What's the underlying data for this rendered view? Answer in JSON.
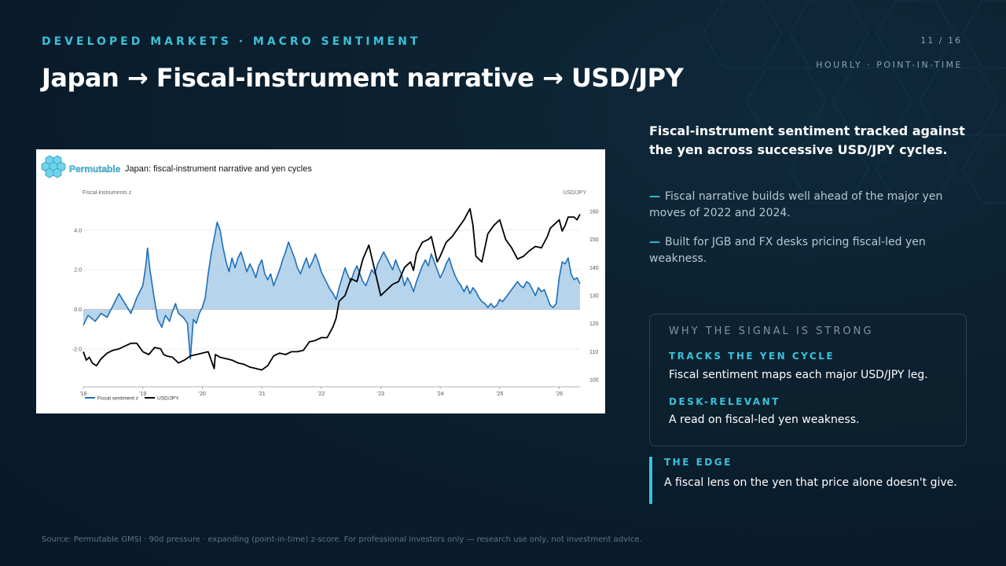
{
  "header": {
    "kicker": "DEVELOPED MARKETS  ·  MACRO SENTIMENT",
    "title": "Japan  →  Fiscal-instrument narrative → USD/JPY",
    "page": "11 / 16",
    "badge": "HOURLY · POINT-IN-TIME"
  },
  "summary": {
    "lead": "Fiscal-instrument sentiment tracked against the yen across successive USD/JPY cycles.",
    "bullets": [
      "Fiscal narrative builds well ahead of the major yen moves of 2022 and 2024.",
      "Built for JGB and FX desks pricing fiscal-led yen weakness."
    ],
    "dash": "—"
  },
  "panel": {
    "heading": "WHY THE SIGNAL IS STRONG",
    "items": [
      {
        "label": "TRACKS THE YEN CYCLE",
        "text": "Fiscal sentiment maps each major USD/JPY leg."
      },
      {
        "label": "DESK-RELEVANT",
        "text": "A read on fiscal-led yen weakness."
      }
    ]
  },
  "edge": {
    "label": "THE EDGE",
    "text": "A fiscal lens on the yen that price alone doesn't give."
  },
  "footer": "Source: Permutable GMSI · 90d pressure · expanding (point-in-time) z-score. For professional investors only — research use only, not investment advice.",
  "colors": {
    "accent": "#39c2d8",
    "background": "#0b1f2e",
    "sentiment_line": "#1f6fb5",
    "sentiment_fill": "#a9cce9",
    "usdjpy_line": "#000000"
  },
  "chart_data": {
    "type": "line",
    "brand": "Permutable",
    "title": "Japan: fiscal-instrument narrative and yen cycles",
    "ylabel_left": "Fiscal-instruments z",
    "ylabel_right": "USD/JPY",
    "x_ticks": [
      "'18",
      "'19",
      "'20",
      "'21",
      "'22",
      "'23",
      "'24",
      "'25",
      "'26"
    ],
    "x_range": [
      2018.0,
      2026.35
    ],
    "left_axis": {
      "range": [
        -3.9,
        5.3
      ],
      "ticks": [
        -2.0,
        0.0,
        2.0,
        4.0
      ],
      "tick_labels": [
        "-2.0",
        "0.0",
        "2.0",
        "4.0"
      ]
    },
    "right_axis": {
      "range": [
        97.5,
        162.5
      ],
      "ticks": [
        100,
        110,
        120,
        130,
        140,
        150,
        160
      ],
      "tick_labels": [
        "100",
        "110",
        "120",
        "130",
        "140",
        "150",
        "160"
      ]
    },
    "grid": true,
    "legend_position": "bottom-left",
    "series": [
      {
        "name": "Fiscal sentiment z",
        "axis": "left",
        "area_fill": true,
        "points": [
          [
            2018.0,
            -0.8
          ],
          [
            2018.08,
            -0.3
          ],
          [
            2018.2,
            -0.6
          ],
          [
            2018.3,
            -0.2
          ],
          [
            2018.4,
            -0.4
          ],
          [
            2018.5,
            0.2
          ],
          [
            2018.6,
            0.8
          ],
          [
            2018.7,
            0.3
          ],
          [
            2018.8,
            -0.2
          ],
          [
            2018.9,
            0.6
          ],
          [
            2019.0,
            1.2
          ],
          [
            2019.05,
            2.2
          ],
          [
            2019.08,
            3.1
          ],
          [
            2019.12,
            2.0
          ],
          [
            2019.18,
            0.8
          ],
          [
            2019.25,
            -0.5
          ],
          [
            2019.32,
            -0.9
          ],
          [
            2019.38,
            -0.3
          ],
          [
            2019.45,
            -0.6
          ],
          [
            2019.5,
            -0.1
          ],
          [
            2019.55,
            0.3
          ],
          [
            2019.6,
            -0.2
          ],
          [
            2019.68,
            -0.4
          ],
          [
            2019.75,
            -0.7
          ],
          [
            2019.8,
            -2.5
          ],
          [
            2019.85,
            -0.5
          ],
          [
            2019.9,
            -0.7
          ],
          [
            2019.95,
            -0.2
          ],
          [
            2020.0,
            0.1
          ],
          [
            2020.05,
            0.6
          ],
          [
            2020.1,
            1.8
          ],
          [
            2020.15,
            2.8
          ],
          [
            2020.2,
            3.6
          ],
          [
            2020.25,
            4.4
          ],
          [
            2020.3,
            4.0
          ],
          [
            2020.35,
            3.1
          ],
          [
            2020.4,
            2.4
          ],
          [
            2020.45,
            1.9
          ],
          [
            2020.5,
            2.6
          ],
          [
            2020.55,
            2.1
          ],
          [
            2020.6,
            2.6
          ],
          [
            2020.65,
            2.9
          ],
          [
            2020.7,
            2.4
          ],
          [
            2020.75,
            1.9
          ],
          [
            2020.8,
            2.3
          ],
          [
            2020.85,
            2.0
          ],
          [
            2020.9,
            1.6
          ],
          [
            2020.95,
            2.2
          ],
          [
            2021.0,
            2.5
          ],
          [
            2021.05,
            1.8
          ],
          [
            2021.1,
            1.5
          ],
          [
            2021.15,
            1.8
          ],
          [
            2021.2,
            1.2
          ],
          [
            2021.25,
            1.6
          ],
          [
            2021.3,
            2.0
          ],
          [
            2021.35,
            2.5
          ],
          [
            2021.4,
            2.9
          ],
          [
            2021.45,
            3.4
          ],
          [
            2021.5,
            3.0
          ],
          [
            2021.55,
            2.6
          ],
          [
            2021.6,
            2.1
          ],
          [
            2021.65,
            1.8
          ],
          [
            2021.7,
            2.2
          ],
          [
            2021.75,
            2.6
          ],
          [
            2021.8,
            2.1
          ],
          [
            2021.85,
            2.4
          ],
          [
            2021.9,
            2.8
          ],
          [
            2021.95,
            2.4
          ],
          [
            2022.0,
            1.9
          ],
          [
            2022.05,
            1.6
          ],
          [
            2022.1,
            1.3
          ],
          [
            2022.15,
            1.0
          ],
          [
            2022.2,
            0.8
          ],
          [
            2022.25,
            0.5
          ],
          [
            2022.3,
            1.1
          ],
          [
            2022.35,
            1.6
          ],
          [
            2022.4,
            2.1
          ],
          [
            2022.45,
            1.7
          ],
          [
            2022.5,
            1.4
          ],
          [
            2022.55,
            1.9
          ],
          [
            2022.6,
            2.2
          ],
          [
            2022.65,
            1.8
          ],
          [
            2022.7,
            1.4
          ],
          [
            2022.75,
            1.2
          ],
          [
            2022.8,
            1.6
          ],
          [
            2022.85,
            2.0
          ],
          [
            2022.9,
            1.8
          ],
          [
            2022.95,
            2.3
          ],
          [
            2023.0,
            2.6
          ],
          [
            2023.05,
            2.9
          ],
          [
            2023.1,
            2.6
          ],
          [
            2023.15,
            2.3
          ],
          [
            2023.2,
            2.0
          ],
          [
            2023.25,
            2.5
          ],
          [
            2023.3,
            2.1
          ],
          [
            2023.35,
            1.8
          ],
          [
            2023.4,
            1.2
          ],
          [
            2023.45,
            1.6
          ],
          [
            2023.5,
            1.3
          ],
          [
            2023.55,
            0.9
          ],
          [
            2023.6,
            1.4
          ],
          [
            2023.65,
            1.8
          ],
          [
            2023.7,
            2.2
          ],
          [
            2023.75,
            2.5
          ],
          [
            2023.8,
            2.2
          ],
          [
            2023.85,
            2.8
          ],
          [
            2023.9,
            2.4
          ],
          [
            2023.95,
            2.0
          ],
          [
            2024.0,
            1.6
          ],
          [
            2024.05,
            1.9
          ],
          [
            2024.1,
            2.3
          ],
          [
            2024.15,
            2.6
          ],
          [
            2024.2,
            2.1
          ],
          [
            2024.25,
            1.7
          ],
          [
            2024.3,
            1.4
          ],
          [
            2024.35,
            1.2
          ],
          [
            2024.4,
            0.9
          ],
          [
            2024.45,
            1.2
          ],
          [
            2024.5,
            0.8
          ],
          [
            2024.55,
            1.1
          ],
          [
            2024.6,
            0.9
          ],
          [
            2024.65,
            0.6
          ],
          [
            2024.7,
            0.4
          ],
          [
            2024.75,
            0.3
          ],
          [
            2024.8,
            0.1
          ],
          [
            2024.85,
            0.3
          ],
          [
            2024.9,
            0.1
          ],
          [
            2024.95,
            0.2
          ],
          [
            2025.0,
            0.5
          ],
          [
            2025.05,
            0.4
          ],
          [
            2025.1,
            0.6
          ],
          [
            2025.15,
            0.8
          ],
          [
            2025.2,
            1.0
          ],
          [
            2025.25,
            1.2
          ],
          [
            2025.3,
            1.4
          ],
          [
            2025.35,
            1.2
          ],
          [
            2025.4,
            1.1
          ],
          [
            2025.45,
            1.4
          ],
          [
            2025.5,
            1.3
          ],
          [
            2025.55,
            1.0
          ],
          [
            2025.6,
            0.7
          ],
          [
            2025.65,
            1.1
          ],
          [
            2025.7,
            0.9
          ],
          [
            2025.75,
            1.0
          ],
          [
            2025.8,
            0.6
          ],
          [
            2025.85,
            0.2
          ],
          [
            2025.9,
            0.1
          ],
          [
            2025.95,
            0.3
          ],
          [
            2026.0,
            1.6
          ],
          [
            2026.05,
            2.4
          ],
          [
            2026.1,
            2.3
          ],
          [
            2026.15,
            2.6
          ],
          [
            2026.2,
            1.8
          ],
          [
            2026.25,
            1.5
          ],
          [
            2026.3,
            1.6
          ],
          [
            2026.35,
            1.3
          ]
        ]
      },
      {
        "name": "USD/JPY",
        "axis": "right",
        "area_fill": false,
        "points": [
          [
            2018.0,
            110
          ],
          [
            2018.05,
            107
          ],
          [
            2018.1,
            108
          ],
          [
            2018.15,
            106
          ],
          [
            2018.22,
            105
          ],
          [
            2018.3,
            107.5
          ],
          [
            2018.4,
            109.5
          ],
          [
            2018.5,
            110.5
          ],
          [
            2018.6,
            111
          ],
          [
            2018.7,
            112
          ],
          [
            2018.8,
            113
          ],
          [
            2018.9,
            113
          ],
          [
            2019.0,
            110
          ],
          [
            2019.1,
            109
          ],
          [
            2019.2,
            111.5
          ],
          [
            2019.3,
            111
          ],
          [
            2019.35,
            109
          ],
          [
            2019.4,
            108.5
          ],
          [
            2019.5,
            108
          ],
          [
            2019.6,
            106
          ],
          [
            2019.7,
            107
          ],
          [
            2019.8,
            108.5
          ],
          [
            2019.9,
            109
          ],
          [
            2020.0,
            109.5
          ],
          [
            2020.1,
            110
          ],
          [
            2020.2,
            104
          ],
          [
            2020.22,
            109
          ],
          [
            2020.3,
            108
          ],
          [
            2020.4,
            107.5
          ],
          [
            2020.5,
            107
          ],
          [
            2020.6,
            106
          ],
          [
            2020.7,
            105.5
          ],
          [
            2020.8,
            104.5
          ],
          [
            2020.9,
            104
          ],
          [
            2021.0,
            103.5
          ],
          [
            2021.1,
            105
          ],
          [
            2021.2,
            108.5
          ],
          [
            2021.3,
            109.5
          ],
          [
            2021.4,
            109
          ],
          [
            2021.5,
            110
          ],
          [
            2021.6,
            110
          ],
          [
            2021.7,
            110.5
          ],
          [
            2021.8,
            113.5
          ],
          [
            2021.9,
            114
          ],
          [
            2022.0,
            115
          ],
          [
            2022.1,
            115
          ],
          [
            2022.2,
            119
          ],
          [
            2022.25,
            122
          ],
          [
            2022.3,
            128
          ],
          [
            2022.4,
            130
          ],
          [
            2022.5,
            136
          ],
          [
            2022.6,
            135
          ],
          [
            2022.7,
            143
          ],
          [
            2022.8,
            148
          ],
          [
            2022.9,
            139
          ],
          [
            2023.0,
            130
          ],
          [
            2023.1,
            132
          ],
          [
            2023.2,
            134
          ],
          [
            2023.3,
            135
          ],
          [
            2023.4,
            140
          ],
          [
            2023.5,
            142
          ],
          [
            2023.55,
            139
          ],
          [
            2023.6,
            145
          ],
          [
            2023.7,
            149
          ],
          [
            2023.8,
            150
          ],
          [
            2023.85,
            151
          ],
          [
            2023.95,
            142
          ],
          [
            2024.0,
            144
          ],
          [
            2024.1,
            149
          ],
          [
            2024.2,
            151
          ],
          [
            2024.3,
            154
          ],
          [
            2024.4,
            157
          ],
          [
            2024.5,
            161
          ],
          [
            2024.55,
            155
          ],
          [
            2024.6,
            144
          ],
          [
            2024.7,
            142
          ],
          [
            2024.8,
            152
          ],
          [
            2024.9,
            155
          ],
          [
            2025.0,
            157
          ],
          [
            2025.1,
            150
          ],
          [
            2025.2,
            147
          ],
          [
            2025.3,
            143
          ],
          [
            2025.4,
            144
          ],
          [
            2025.5,
            146
          ],
          [
            2025.6,
            147.5
          ],
          [
            2025.7,
            147
          ],
          [
            2025.8,
            151
          ],
          [
            2025.85,
            154
          ],
          [
            2025.9,
            155
          ],
          [
            2026.0,
            157
          ],
          [
            2026.05,
            153
          ],
          [
            2026.1,
            155
          ],
          [
            2026.15,
            158
          ],
          [
            2026.25,
            158
          ],
          [
            2026.3,
            157
          ],
          [
            2026.35,
            159
          ]
        ]
      }
    ]
  }
}
